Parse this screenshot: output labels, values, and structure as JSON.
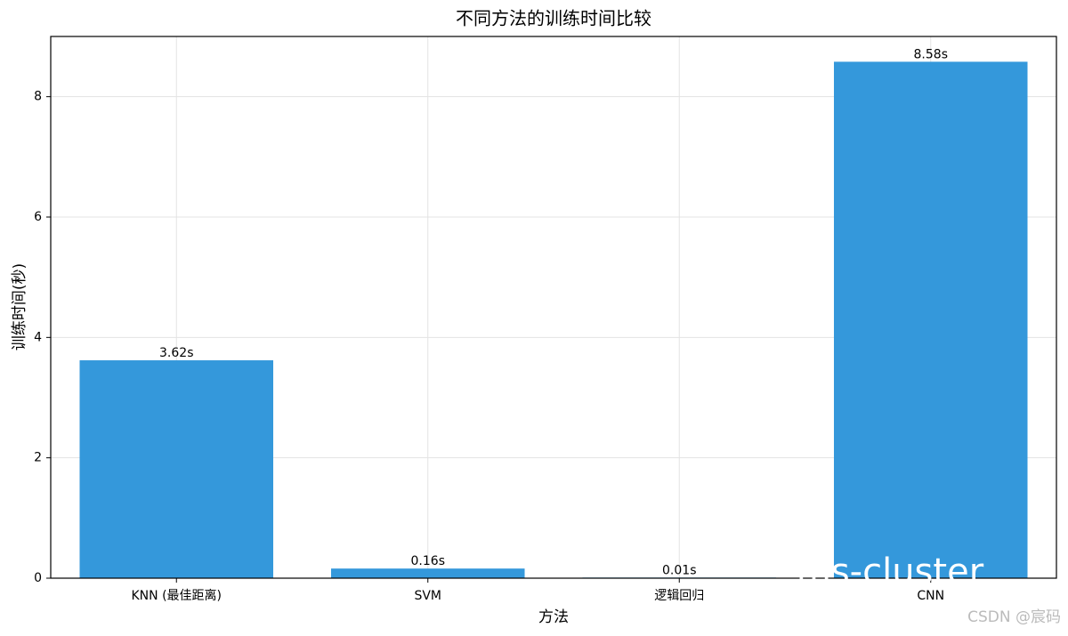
{
  "chart_data": {
    "type": "bar",
    "title": "不同方法的训练时间比较",
    "x_label": "方法",
    "y_label": "训练时间(秒)",
    "categories": [
      "KNN (最佳距离)",
      "SVM",
      "逻辑回归",
      "CNN"
    ],
    "values": [
      3.62,
      0.16,
      0.01,
      8.58
    ],
    "value_labels": [
      "3.62s",
      "0.16s",
      "0.01s",
      "8.58s"
    ],
    "color": "#3498db",
    "ylim": [
      0,
      9.0
    ],
    "yticks": [
      0,
      2,
      4,
      6,
      8
    ],
    "grid": true,
    "overlay_text": "ms-cluster",
    "watermark": "CSDN @宸码"
  }
}
